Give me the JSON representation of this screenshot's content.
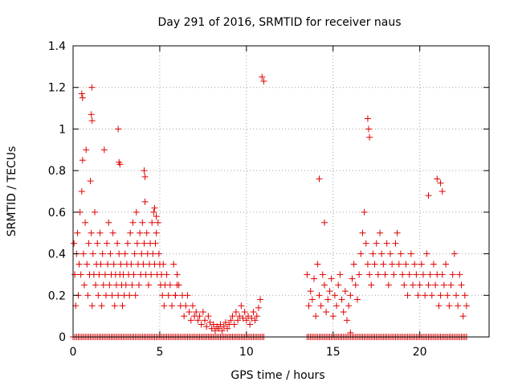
{
  "chart_data": {
    "type": "scatter",
    "title": "Day 291 of 2016, SRMTID for receiver naus",
    "xlabel": "GPS time / hours",
    "ylabel": "SRMTID / TECUs",
    "xlim": [
      0,
      24
    ],
    "ylim": [
      0,
      1.4
    ],
    "xticks": [
      0,
      5,
      10,
      15,
      20
    ],
    "xtick_labels": [
      "0",
      "5",
      "10",
      "15",
      "20"
    ],
    "yticks": [
      0,
      0.2,
      0.4,
      0.6,
      0.8,
      1.0,
      1.2,
      1.4
    ],
    "ytick_labels": [
      "0",
      "0.2",
      "0.4",
      "0.6",
      "0.8",
      "1",
      "1.2",
      "1.4"
    ],
    "grid": true,
    "marker": "+",
    "color": "#e00000",
    "series": [
      {
        "name": "SRMTID",
        "x": [
          0.05,
          0.1,
          0.15,
          0.2,
          0.25,
          0.3,
          0.35,
          0.4,
          0.45,
          0.5,
          0.55,
          0.6,
          0.65,
          0.7,
          0.75,
          0.8,
          0.85,
          0.9,
          0.95,
          1.0,
          1.05,
          1.1,
          1.15,
          1.2,
          1.25,
          1.3,
          1.35,
          1.4,
          1.45,
          1.5,
          1.55,
          1.6,
          1.65,
          1.7,
          1.75,
          1.8,
          1.85,
          1.9,
          1.95,
          2.0,
          2.05,
          2.1,
          2.15,
          2.2,
          2.25,
          2.3,
          2.35,
          2.4,
          2.45,
          2.5,
          2.55,
          2.6,
          2.65,
          2.7,
          2.75,
          2.8,
          2.85,
          2.9,
          2.95,
          3.0,
          3.05,
          3.1,
          3.15,
          3.2,
          3.25,
          3.3,
          3.35,
          3.4,
          3.45,
          3.5,
          3.55,
          3.6,
          3.65,
          3.7,
          3.75,
          3.8,
          3.85,
          3.9,
          3.95,
          4.0,
          4.05,
          4.1,
          4.15,
          4.2,
          4.25,
          4.3,
          4.35,
          4.4,
          4.45,
          4.5,
          4.55,
          4.6,
          4.65,
          4.7,
          4.75,
          4.8,
          4.85,
          4.9,
          4.95,
          5.0,
          5.05,
          5.1,
          5.15,
          5.2,
          5.25,
          5.3,
          5.4,
          5.5,
          5.6,
          5.7,
          5.8,
          5.9,
          6.0,
          6.1,
          6.2,
          6.3,
          6.4,
          6.5,
          6.6,
          6.7,
          6.8,
          6.9,
          7.0,
          7.1,
          7.2,
          7.3,
          7.4,
          7.5,
          7.6,
          7.7,
          7.8,
          7.9,
          8.0,
          8.1,
          8.2,
          8.3,
          8.4,
          8.5,
          8.6,
          8.7,
          8.8,
          8.9,
          9.0,
          9.1,
          9.2,
          9.3,
          9.4,
          9.5,
          9.6,
          9.7,
          9.8,
          9.9,
          10.0,
          10.1,
          10.2,
          10.3,
          10.4,
          10.5,
          10.6,
          10.7,
          10.8,
          10.9,
          11.0,
          0.5,
          0.55,
          1.05,
          1.08,
          1.1,
          2.6,
          2.65,
          2.7,
          4.1,
          4.15,
          4.7,
          4.8,
          5.9,
          6.0,
          13.5,
          13.6,
          13.7,
          13.8,
          13.9,
          14.0,
          14.1,
          14.2,
          14.3,
          14.4,
          14.5,
          14.6,
          14.7,
          14.8,
          14.9,
          15.0,
          15.1,
          15.2,
          15.3,
          15.4,
          15.5,
          15.6,
          15.7,
          15.8,
          15.9,
          16.0,
          16.1,
          16.2,
          16.3,
          16.4,
          16.5,
          16.6,
          16.7,
          16.8,
          16.9,
          17.0,
          17.1,
          17.2,
          17.3,
          17.4,
          17.5,
          17.6,
          17.7,
          17.8,
          17.9,
          18.0,
          18.1,
          18.2,
          18.3,
          18.4,
          18.5,
          18.6,
          18.7,
          18.8,
          18.9,
          19.0,
          19.1,
          19.2,
          19.3,
          19.4,
          19.5,
          19.6,
          19.7,
          19.8,
          19.9,
          20.0,
          20.1,
          20.2,
          20.3,
          20.4,
          20.5,
          20.6,
          20.7,
          20.8,
          20.9,
          21.0,
          21.1,
          21.2,
          21.3,
          21.4,
          21.5,
          21.6,
          21.7,
          21.8,
          21.9,
          22.0,
          22.1,
          22.2,
          22.3,
          22.4,
          22.5,
          22.6,
          22.7,
          14.2,
          14.5,
          17.0,
          17.05,
          17.1,
          16.0,
          21.0,
          21.2,
          21.3,
          20.5
        ],
        "y": [
          0.45,
          0.3,
          0.15,
          0.4,
          0.5,
          0.2,
          0.35,
          0.6,
          0.3,
          0.7,
          0.85,
          0.4,
          0.25,
          0.55,
          0.9,
          0.35,
          0.2,
          0.45,
          0.3,
          0.75,
          0.5,
          0.15,
          0.4,
          0.3,
          0.6,
          0.25,
          0.35,
          0.45,
          0.2,
          0.3,
          0.5,
          0.35,
          0.15,
          0.4,
          0.25,
          0.9,
          0.3,
          0.2,
          0.45,
          0.35,
          0.55,
          0.25,
          0.4,
          0.3,
          0.2,
          0.5,
          0.35,
          0.15,
          0.3,
          0.25,
          0.45,
          0.2,
          0.4,
          0.3,
          0.35,
          0.25,
          0.15,
          0.3,
          0.2,
          0.4,
          0.25,
          0.35,
          0.45,
          0.3,
          0.2,
          0.5,
          0.35,
          0.25,
          0.55,
          0.3,
          0.4,
          0.2,
          0.6,
          0.45,
          0.35,
          0.25,
          0.5,
          0.3,
          0.4,
          0.55,
          0.35,
          0.45,
          0.65,
          0.3,
          0.5,
          0.4,
          0.25,
          0.35,
          0.45,
          0.3,
          0.55,
          0.4,
          0.6,
          0.35,
          0.45,
          0.5,
          0.3,
          0.55,
          0.4,
          0.35,
          0.25,
          0.3,
          0.2,
          0.35,
          0.15,
          0.25,
          0.3,
          0.2,
          0.25,
          0.15,
          0.35,
          0.2,
          0.3,
          0.25,
          0.15,
          0.2,
          0.1,
          0.15,
          0.2,
          0.12,
          0.08,
          0.15,
          0.1,
          0.12,
          0.08,
          0.1,
          0.06,
          0.12,
          0.08,
          0.05,
          0.1,
          0.07,
          0.04,
          0.06,
          0.03,
          0.05,
          0.04,
          0.06,
          0.03,
          0.05,
          0.07,
          0.04,
          0.06,
          0.08,
          0.1,
          0.06,
          0.12,
          0.08,
          0.1,
          0.15,
          0.09,
          0.12,
          0.08,
          0.1,
          0.06,
          0.09,
          0.12,
          0.08,
          0.1,
          0.14,
          0.18,
          1.25,
          1.23,
          1.17,
          1.15,
          1.07,
          1.2,
          1.04,
          1.0,
          0.84,
          0.83,
          0.8,
          0.77,
          0.62,
          0.58,
          0.2,
          0.25,
          0.3,
          0.15,
          0.22,
          0.18,
          0.28,
          0.1,
          0.35,
          0.2,
          0.15,
          0.3,
          0.25,
          0.12,
          0.18,
          0.22,
          0.28,
          0.1,
          0.2,
          0.15,
          0.25,
          0.3,
          0.18,
          0.12,
          0.22,
          0.08,
          0.15,
          0.2,
          0.28,
          0.35,
          0.25,
          0.18,
          0.3,
          0.4,
          0.5,
          0.6,
          0.45,
          0.35,
          0.3,
          0.25,
          0.4,
          0.35,
          0.45,
          0.3,
          0.5,
          0.4,
          0.35,
          0.3,
          0.45,
          0.25,
          0.4,
          0.35,
          0.3,
          0.45,
          0.5,
          0.35,
          0.4,
          0.3,
          0.25,
          0.35,
          0.2,
          0.3,
          0.4,
          0.25,
          0.35,
          0.3,
          0.2,
          0.25,
          0.35,
          0.3,
          0.2,
          0.4,
          0.25,
          0.3,
          0.2,
          0.35,
          0.25,
          0.3,
          0.15,
          0.2,
          0.3,
          0.25,
          0.35,
          0.2,
          0.15,
          0.25,
          0.3,
          0.4,
          0.2,
          0.15,
          0.3,
          0.25,
          0.1,
          0.2,
          0.15,
          0.76,
          0.55,
          1.05,
          1.0,
          0.96,
          0.02,
          0.76,
          0.74,
          0.7,
          0.68
        ]
      }
    ],
    "baseline_rows": [
      {
        "x_start": 0,
        "x_end": 11.0,
        "y": 0
      },
      {
        "x_start": 13.5,
        "x_end": 22.7,
        "y": 0
      }
    ]
  }
}
